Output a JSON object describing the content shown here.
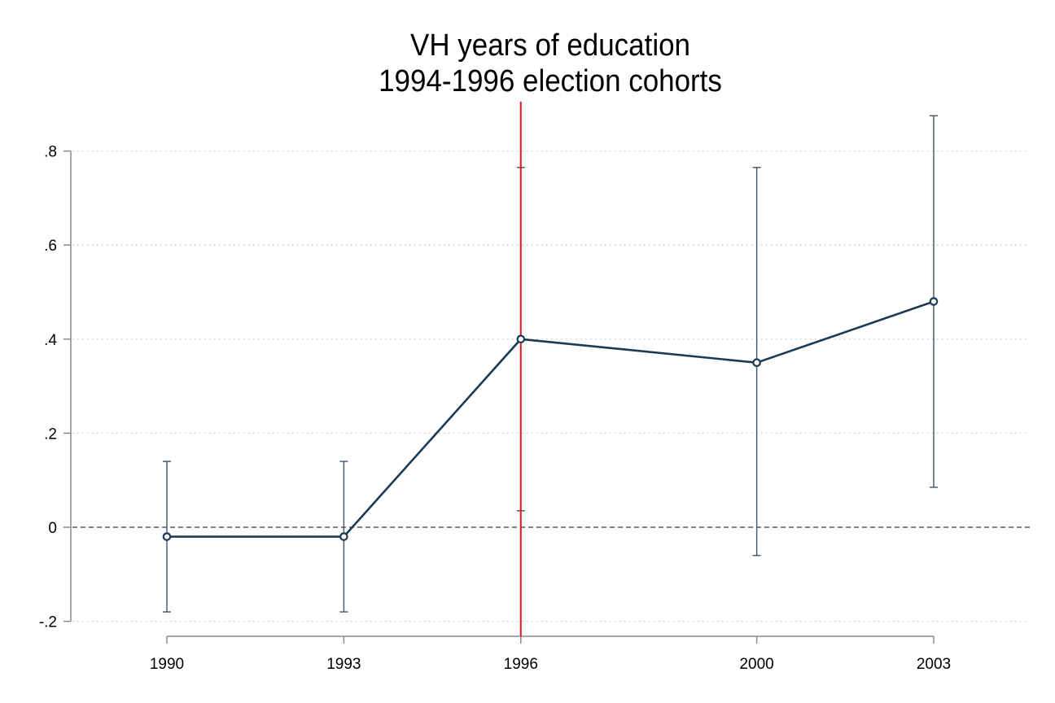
{
  "chart_data": {
    "type": "line",
    "title": "VH years of education",
    "subtitle": "1994-1996 election cohorts",
    "x": [
      1990,
      1993,
      1996,
      2000,
      2003
    ],
    "x_tick_labels": [
      "1990",
      "1993",
      "1996",
      "2000",
      "2003"
    ],
    "y_tick_values": [
      -0.2,
      0,
      0.2,
      0.4,
      0.6,
      0.8
    ],
    "y_tick_labels": [
      "-.2",
      "0",
      ".2",
      ".4",
      ".6",
      ".8"
    ],
    "ylim": [
      -0.2,
      0.8
    ],
    "series": [
      {
        "values": [
          -0.02,
          -0.02,
          0.4,
          0.35,
          0.48
        ],
        "ci_lower": [
          -0.18,
          -0.18,
          0.035,
          -0.06,
          0.085
        ],
        "ci_upper": [
          0.14,
          0.14,
          0.765,
          0.765,
          0.875
        ],
        "color": "#1a3a55"
      }
    ],
    "reference_lines": [
      {
        "axis": "x",
        "value": 1996,
        "color": "#e8161b",
        "style": "solid"
      },
      {
        "axis": "y",
        "value": 0,
        "color": "#555555",
        "style": "dashed"
      }
    ],
    "grid": "horizontal-dotted",
    "legend": "none"
  }
}
